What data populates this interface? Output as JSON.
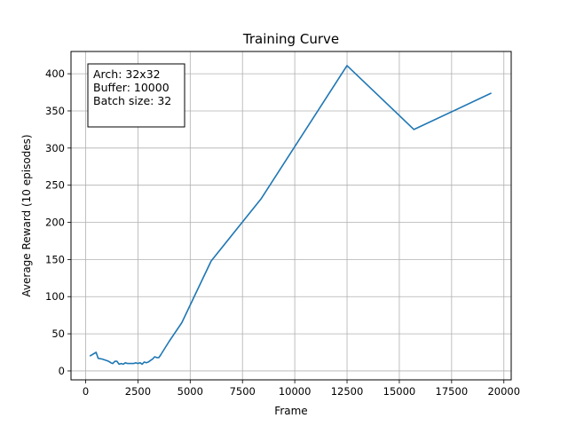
{
  "chart_data": {
    "type": "line",
    "title": "Training Curve",
    "xlabel": "Frame",
    "ylabel": "Average Reward (10 episodes)",
    "xlim": [
      -700,
      20350
    ],
    "ylim": [
      -12,
      430
    ],
    "xticks": [
      0,
      2500,
      5000,
      7500,
      10000,
      12500,
      15000,
      17500,
      20000
    ],
    "yticks": [
      0,
      50,
      100,
      150,
      200,
      250,
      300,
      350,
      400
    ],
    "grid": true,
    "line_color": "#1f77b4",
    "annotation": [
      "Arch: 32x32",
      "Buffer: 10000",
      "Batch size: 32"
    ],
    "annotation_placement": "top-left",
    "series": [
      {
        "x": [
          200,
          500,
          600,
          800,
          1000,
          1100,
          1200,
          1300,
          1400,
          1500,
          1600,
          1700,
          1800,
          1900,
          2000,
          2100,
          2200,
          2300,
          2400,
          2500,
          2600,
          2700,
          2800,
          2900,
          3000,
          3100,
          3200,
          3300,
          3400,
          3500,
          3600,
          4000,
          4600,
          6000,
          8400,
          12500,
          15700,
          19400
        ],
        "y": [
          20,
          25,
          17,
          16,
          14,
          13,
          11,
          10,
          13,
          13,
          9,
          10,
          9,
          11,
          10,
          10,
          10,
          10,
          11,
          10,
          11,
          9,
          12,
          11,
          12,
          14,
          16,
          19,
          18,
          18,
          22,
          40,
          65,
          148,
          232,
          411,
          325,
          374
        ]
      }
    ]
  }
}
